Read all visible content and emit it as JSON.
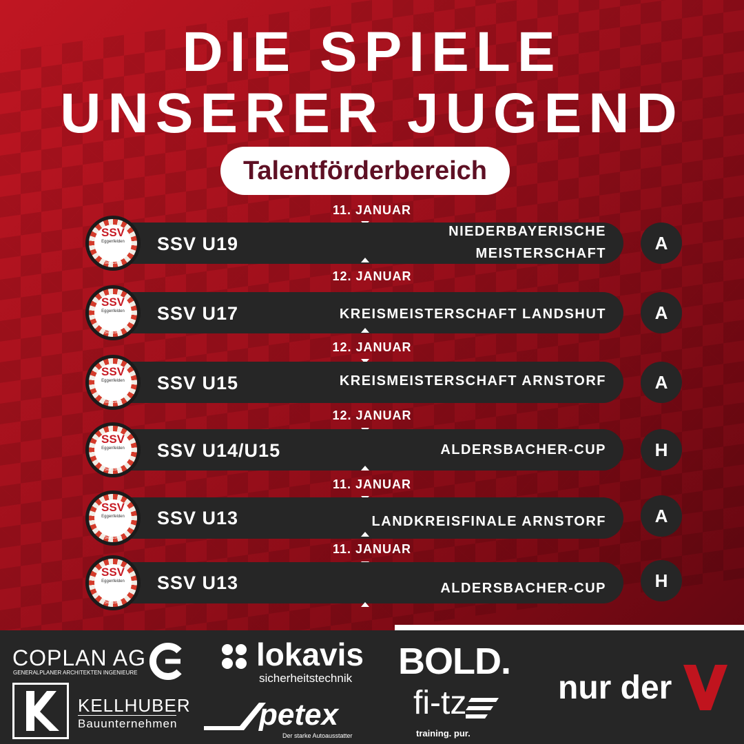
{
  "header": {
    "title_line1": "DIE SPIELE",
    "title_line2": "UNSERER JUGEND",
    "subtitle": "Talentförderbereich"
  },
  "logo": {
    "ssv": "SSV",
    "town": "Eggenfelden",
    "seit": "Seit 1920"
  },
  "matches": [
    {
      "date": "11. JANUAR",
      "team": "SSV U19",
      "competition_line1": "NIEDERBAYERISCHE",
      "competition_line2": "MEISTERSCHAFT",
      "venue": "A"
    },
    {
      "date": "12. JANUAR",
      "team": "SSV U17",
      "competition_line1": "KREISMEISTERSCHAFT LANDSHUT",
      "competition_line2": "",
      "venue": "A"
    },
    {
      "date": "12. JANUAR",
      "team": "SSV U15",
      "competition_line1": "KREISMEISTERSCHAFT ARNSTORF",
      "competition_line2": "",
      "venue": "A"
    },
    {
      "date": "12. JANUAR",
      "team": "SSV U14/U15",
      "competition_line1": "ALDERSBACHER-CUP",
      "competition_line2": "",
      "venue": "H"
    },
    {
      "date": "11. JANUAR",
      "team": "SSV U13",
      "competition_line1": "LANDKREISFINALE ARNSTORF",
      "competition_line2": "",
      "venue": "A"
    },
    {
      "date": "11. JANUAR",
      "team": "SSV U13",
      "competition_line1": "ALDERSBACHER-CUP",
      "competition_line2": "",
      "venue": "H"
    }
  ],
  "sponsors": {
    "coplan_name": "COPLAN AG",
    "coplan_tag": "GENERALPLANER ARCHITEKTEN INGENIEURE",
    "lokavis_name": "lokavis",
    "lokavis_tag": "sicherheitstechnik",
    "bold_name": "BOLD.",
    "kellhuber_name": "KELLHUBER",
    "kellhuber_tag": "Bauunternehmen",
    "petex_name": "petex",
    "petex_tag": "Der starke Autoausstatter",
    "fitz_name": "fi-tz",
    "fitz_tag": "training. pur.",
    "nurder_name": "nur der"
  }
}
